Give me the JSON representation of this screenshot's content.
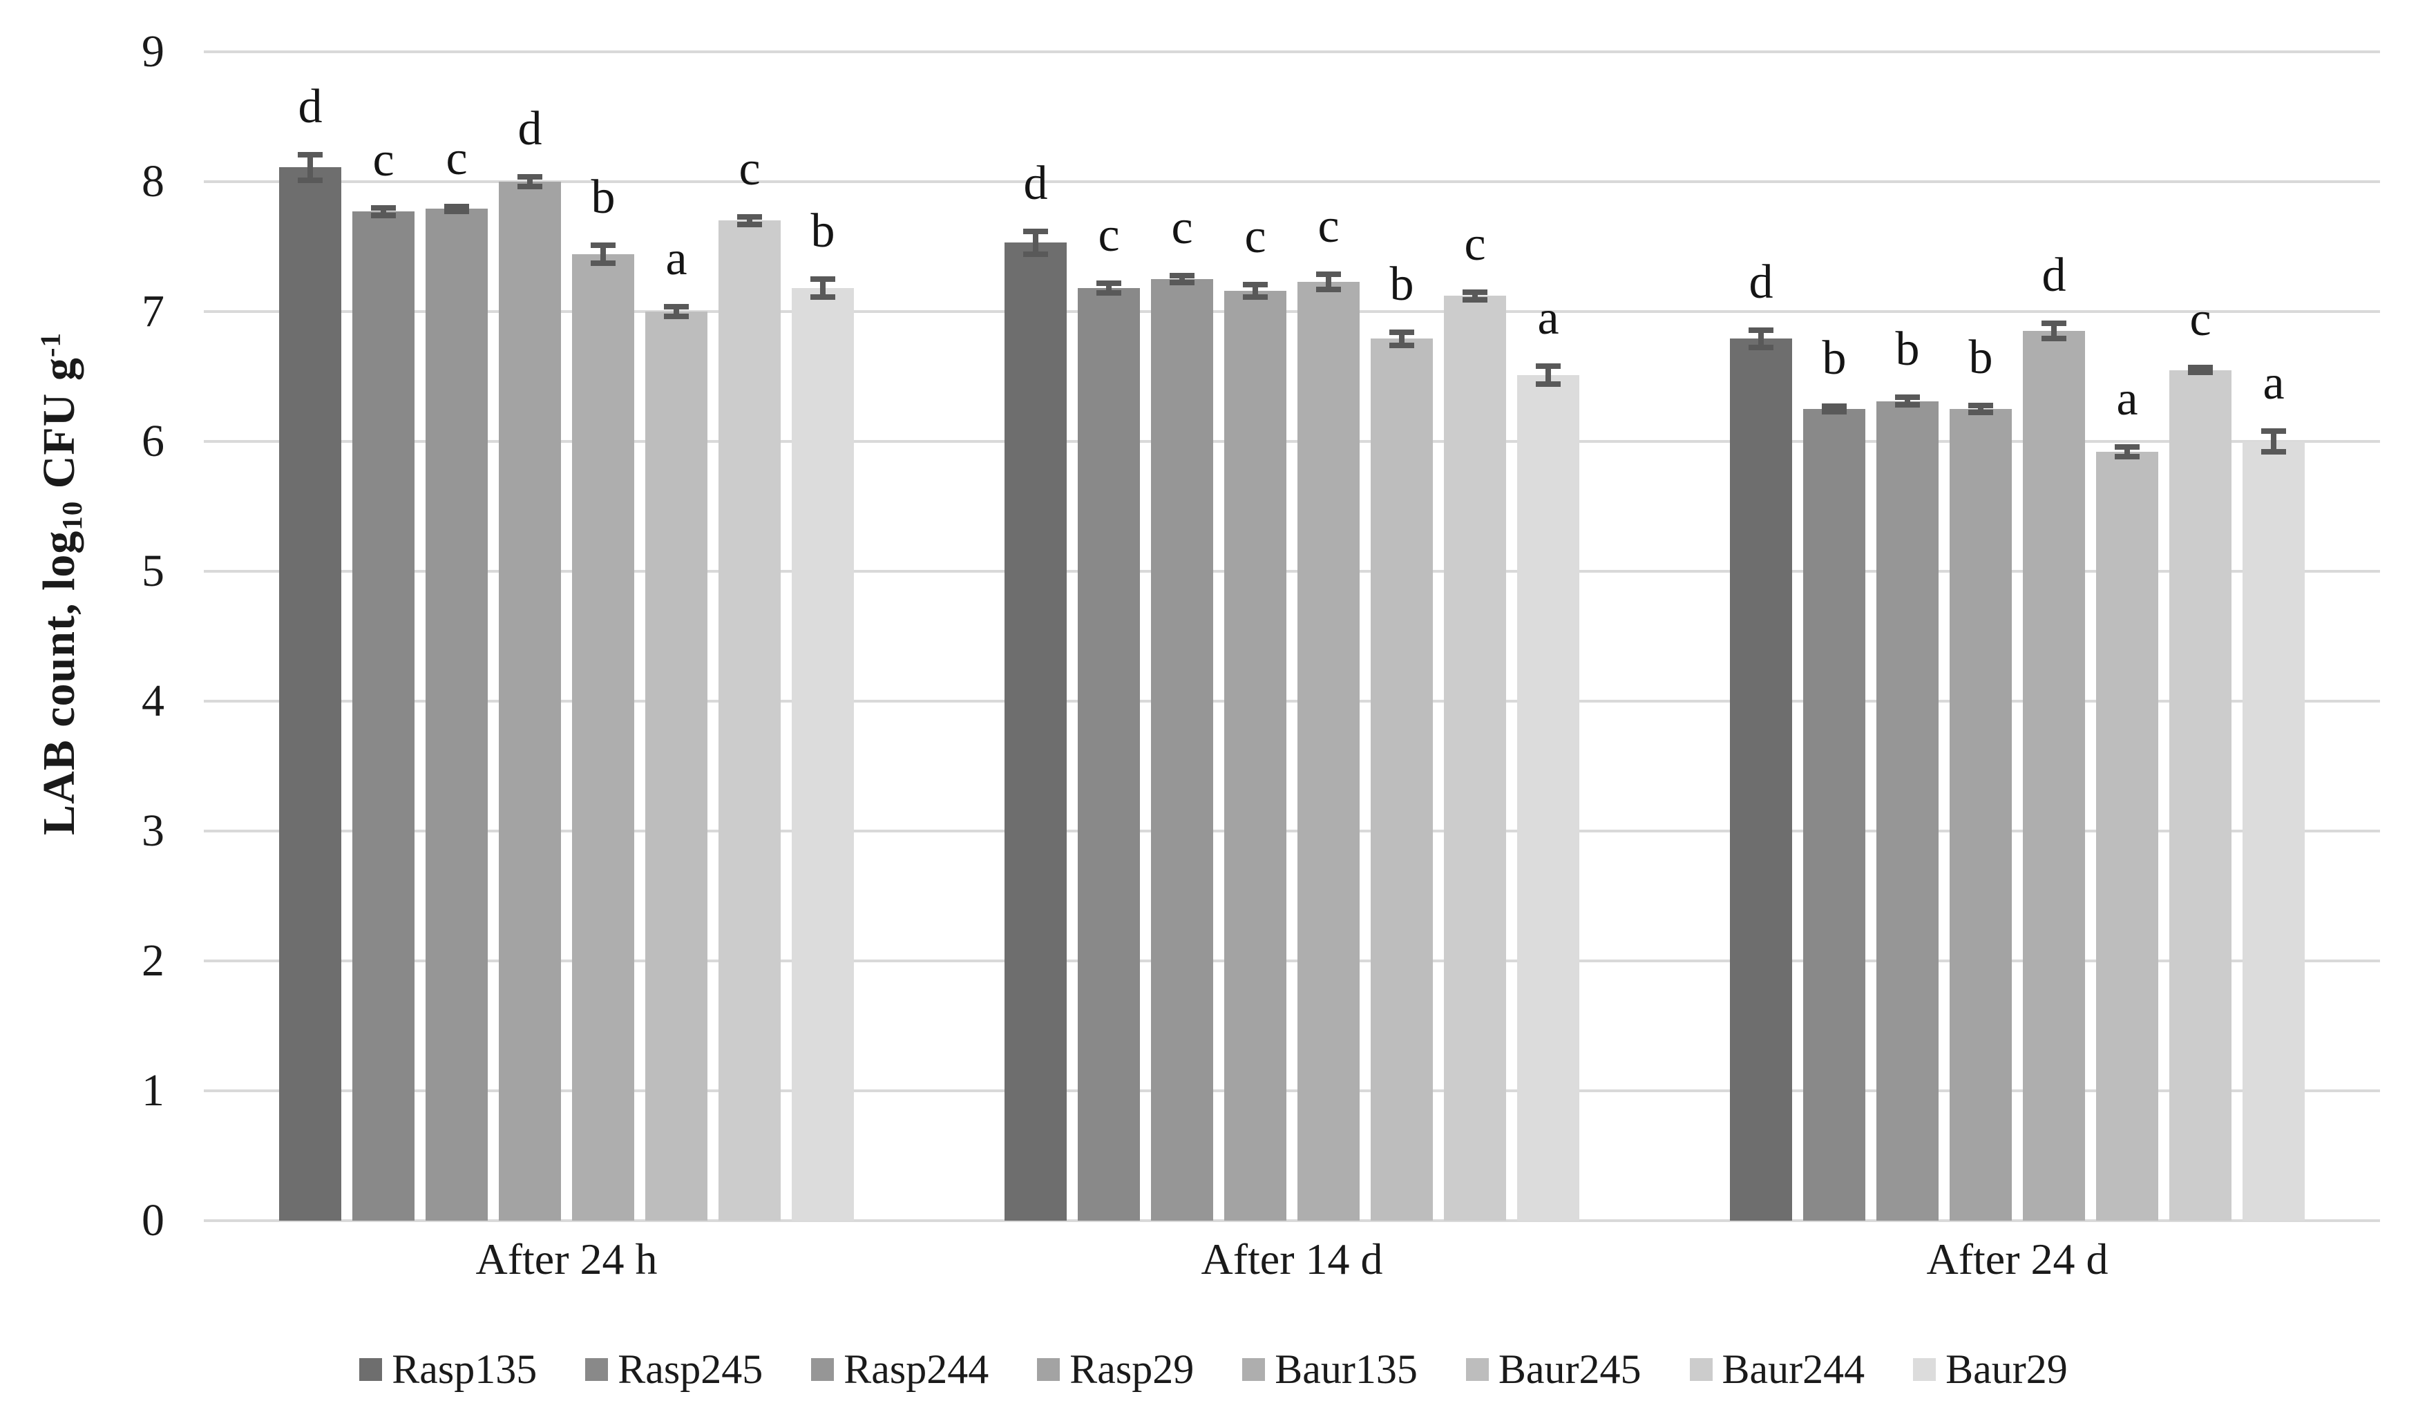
{
  "chart_data": {
    "type": "bar",
    "title": "",
    "ylabel": "LAB count, log10 CFU g-1",
    "ylabel_parts": {
      "prefix": "LAB count, log",
      "sub": "10",
      "mid": " CFU g",
      "sup": "-1"
    },
    "xlabel": "",
    "ylim": [
      0,
      9
    ],
    "yticks": [
      0,
      1,
      2,
      3,
      4,
      5,
      6,
      7,
      8,
      9
    ],
    "grid": "horizontal",
    "legend_position": "bottom",
    "categories": [
      "After 24 h",
      "After 14 d",
      "After 24 d"
    ],
    "series": [
      {
        "name": "Rasp135",
        "color": "#6e6e6e",
        "values": [
          8.11,
          7.53,
          6.79
        ],
        "errors": [
          0.12,
          0.11,
          0.09
        ],
        "letters": [
          "d",
          "d",
          "d"
        ]
      },
      {
        "name": "Rasp245",
        "color": "#898989",
        "values": [
          7.77,
          7.18,
          6.25
        ],
        "errors": [
          0.05,
          0.06,
          0.04
        ],
        "letters": [
          "c",
          "c",
          "b"
        ]
      },
      {
        "name": "Rasp244",
        "color": "#969696",
        "values": [
          7.79,
          7.25,
          6.31
        ],
        "errors": [
          0.04,
          0.05,
          0.05
        ],
        "letters": [
          "c",
          "c",
          "b"
        ]
      },
      {
        "name": "Rasp29",
        "color": "#a3a3a3",
        "values": [
          8.0,
          7.16,
          6.25
        ],
        "errors": [
          0.06,
          0.07,
          0.05
        ],
        "letters": [
          "d",
          "c",
          "b"
        ]
      },
      {
        "name": "Baur135",
        "color": "#aeaeae",
        "values": [
          7.44,
          7.23,
          6.85
        ],
        "errors": [
          0.09,
          0.08,
          0.08
        ],
        "letters": [
          "b",
          "c",
          "d"
        ]
      },
      {
        "name": "Baur245",
        "color": "#bdbdbd",
        "values": [
          7.0,
          6.79,
          5.92
        ],
        "errors": [
          0.06,
          0.07,
          0.06
        ],
        "letters": [
          "a",
          "b",
          "a"
        ]
      },
      {
        "name": "Baur244",
        "color": "#cccccc",
        "values": [
          7.7,
          7.12,
          6.55
        ],
        "errors": [
          0.05,
          0.05,
          0.04
        ],
        "letters": [
          "c",
          "c",
          "c"
        ]
      },
      {
        "name": "Baur29",
        "color": "#dcdcdc",
        "values": [
          7.18,
          6.51,
          6.0
        ],
        "errors": [
          0.09,
          0.09,
          0.1
        ],
        "letters": [
          "b",
          "a",
          "a"
        ]
      }
    ],
    "colors": {
      "gridline": "#d9d9d9",
      "error_bar": "#595959",
      "text": "#1a1a1a",
      "background": "#ffffff"
    }
  }
}
